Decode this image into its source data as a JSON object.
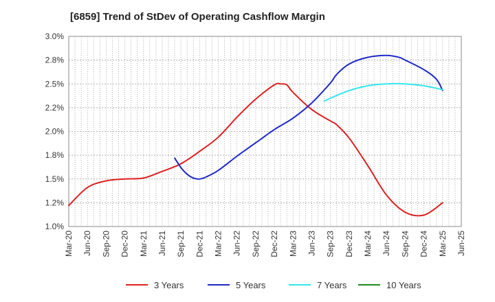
{
  "chart_data": {
    "type": "line",
    "title": "[6859]  Trend of StDev of Operating Cashflow Margin",
    "xlabel": "",
    "ylabel": "",
    "x_ticks": [
      "Mar-20",
      "Jun-20",
      "Sep-20",
      "Dec-20",
      "Mar-21",
      "Jun-21",
      "Sep-21",
      "Dec-21",
      "Mar-22",
      "Jun-22",
      "Sep-22",
      "Dec-22",
      "Mar-23",
      "Jun-23",
      "Sep-23",
      "Dec-23",
      "Mar-24",
      "Jun-24",
      "Sep-24",
      "Dec-24",
      "Mar-25",
      "Jun-25"
    ],
    "y_ticks": [
      "1.0%",
      "1.2%",
      "1.5%",
      "1.8%",
      "2.0%",
      "2.2%",
      "2.5%",
      "2.8%",
      "3.0%"
    ],
    "ylim": [
      1.0,
      3.0
    ],
    "grid": true,
    "legend_position": "bottom",
    "series": [
      {
        "name": "3 Years",
        "color": "#dd1f1f",
        "points": [
          [
            "Mar-20",
            1.22
          ],
          [
            "Jun-20",
            1.41
          ],
          [
            "Sep-20",
            1.48
          ],
          [
            "Dec-20",
            1.5
          ],
          [
            "Mar-21",
            1.51
          ],
          [
            "Jun-21",
            1.58
          ],
          [
            "Sep-21",
            1.66
          ],
          [
            "Dec-21",
            1.79
          ],
          [
            "Mar-22",
            1.94
          ],
          [
            "Jun-22",
            2.15
          ],
          [
            "Sep-22",
            2.34
          ],
          [
            "Dec-22",
            2.49
          ],
          [
            "Jan-23",
            2.5
          ],
          [
            "Feb-23",
            2.49
          ],
          [
            "Mar-23",
            2.41
          ],
          [
            "Jun-23",
            2.23
          ],
          [
            "Sep-23",
            2.11
          ],
          [
            "Oct-23",
            2.07
          ],
          [
            "Dec-23",
            1.93
          ],
          [
            "Mar-24",
            1.64
          ],
          [
            "Jun-24",
            1.33
          ],
          [
            "Sep-24",
            1.15
          ],
          [
            "Dec-24",
            1.12
          ],
          [
            "Mar-25",
            1.25
          ]
        ]
      },
      {
        "name": "5 Years",
        "color": "#1e27c8",
        "points": [
          [
            "Aug-21",
            1.72
          ],
          [
            "Sep-21",
            1.62
          ],
          [
            "Oct-21",
            1.55
          ],
          [
            "Nov-21",
            1.51
          ],
          [
            "Dec-21",
            1.5
          ],
          [
            "Jan-22",
            1.52
          ],
          [
            "Mar-22",
            1.59
          ],
          [
            "Jun-22",
            1.74
          ],
          [
            "Sep-22",
            1.88
          ],
          [
            "Dec-22",
            2.02
          ],
          [
            "Mar-23",
            2.14
          ],
          [
            "Jun-23",
            2.3
          ],
          [
            "Sep-23",
            2.51
          ],
          [
            "Oct-23",
            2.6
          ],
          [
            "Dec-23",
            2.71
          ],
          [
            "Mar-24",
            2.78
          ],
          [
            "Jun-24",
            2.8
          ],
          [
            "Aug-24",
            2.78
          ],
          [
            "Sep-24",
            2.75
          ],
          [
            "Dec-24",
            2.65
          ],
          [
            "Feb-25",
            2.55
          ],
          [
            "Mar-25",
            2.43
          ]
        ]
      },
      {
        "name": "7 Years",
        "color": "#33e6ee",
        "points": [
          [
            "Aug-23",
            2.32
          ],
          [
            "Sep-23",
            2.35
          ],
          [
            "Dec-23",
            2.43
          ],
          [
            "Mar-24",
            2.48
          ],
          [
            "Jun-24",
            2.5
          ],
          [
            "Sep-24",
            2.5
          ],
          [
            "Dec-24",
            2.48
          ],
          [
            "Mar-25",
            2.44
          ]
        ]
      },
      {
        "name": "10 Years",
        "color": "#1c8a1c",
        "points": []
      }
    ]
  }
}
